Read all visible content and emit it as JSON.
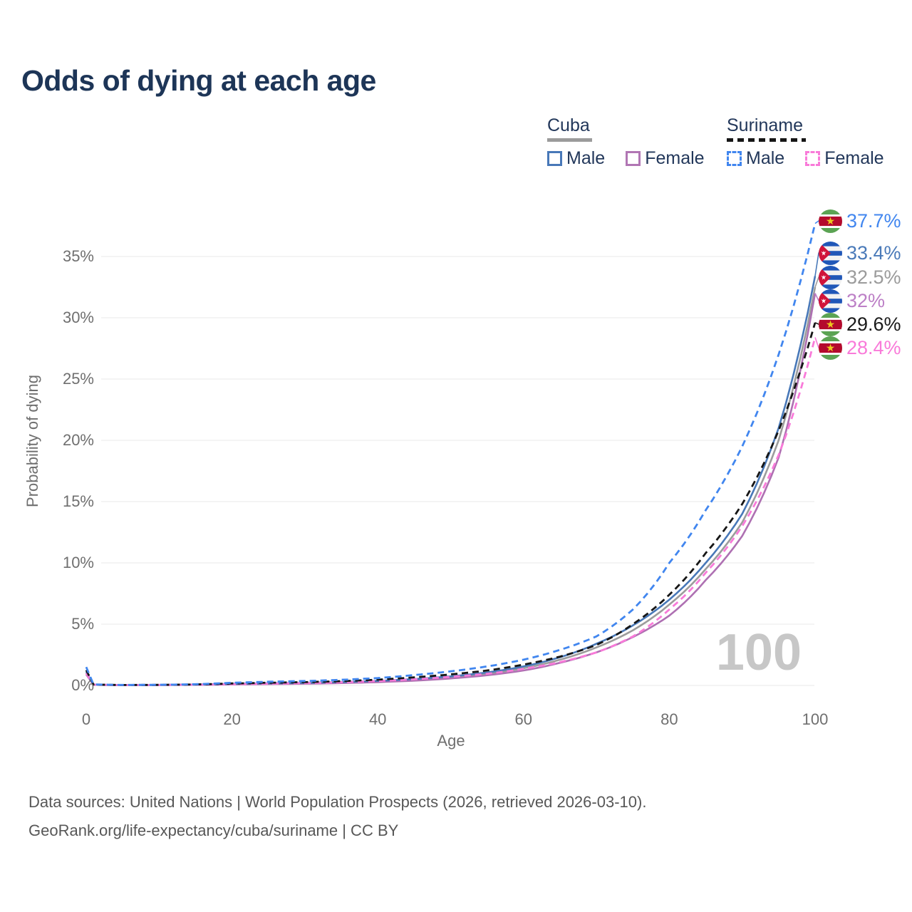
{
  "title": "Odds of dying at each age",
  "legend": {
    "groups": [
      {
        "country": "Cuba",
        "line_style": "solid",
        "underline_color": "#9b9b9b",
        "items": [
          {
            "label": "Male",
            "color": "#4878b8"
          },
          {
            "label": "Female",
            "color": "#b176b4"
          }
        ]
      },
      {
        "country": "Suriname",
        "line_style": "dashed",
        "underline_color": "#161616",
        "items": [
          {
            "label": "Male",
            "color": "#4186ef"
          },
          {
            "label": "Female",
            "color": "#f97ad9"
          }
        ]
      }
    ]
  },
  "chart_data": {
    "type": "line",
    "title": "Odds of dying at each age",
    "xlabel": "Age",
    "ylabel": "Probability of dying",
    "x_ticks": [
      0,
      20,
      40,
      60,
      80,
      100
    ],
    "y_tick_labels": [
      "0%",
      "5%",
      "10%",
      "15%",
      "20%",
      "25%",
      "30%",
      "35%"
    ],
    "xlim": [
      0,
      100
    ],
    "ylim_pct": [
      0,
      38
    ],
    "grid": "horizontal-only",
    "age_marker": "100",
    "ages": [
      0,
      1,
      5,
      10,
      15,
      20,
      25,
      30,
      35,
      40,
      45,
      50,
      55,
      60,
      65,
      70,
      75,
      80,
      85,
      90,
      95,
      100
    ],
    "series": [
      {
        "name": "Cuba (both sexes)",
        "country": "Cuba",
        "sex": "both",
        "color": "#9c9c9c",
        "dash": false,
        "end_label": "32.5%",
        "values_pct": [
          1.0,
          0.055,
          0.028,
          0.037,
          0.06,
          0.11,
          0.15,
          0.18,
          0.24,
          0.33,
          0.46,
          0.66,
          0.95,
          1.4,
          2.1,
          3.1,
          4.5,
          6.6,
          9.5,
          13.3,
          20.0,
          32.5
        ]
      },
      {
        "name": "Cuba Female",
        "country": "Cuba",
        "sex": "Female",
        "color": "#ae70b2",
        "dash": false,
        "end_label": "32%",
        "values_pct": [
          0.9,
          0.05,
          0.025,
          0.033,
          0.05,
          0.08,
          0.11,
          0.14,
          0.19,
          0.27,
          0.39,
          0.57,
          0.83,
          1.22,
          1.85,
          2.7,
          3.95,
          5.7,
          8.6,
          12.2,
          18.6,
          32.0
        ]
      },
      {
        "name": "Cuba Male",
        "country": "Cuba",
        "sex": "Male",
        "color": "#4878b8",
        "dash": false,
        "end_label": "33.4%",
        "values_pct": [
          1.1,
          0.06,
          0.03,
          0.04,
          0.07,
          0.13,
          0.17,
          0.21,
          0.28,
          0.37,
          0.52,
          0.74,
          1.06,
          1.55,
          2.3,
          3.4,
          4.9,
          7.0,
          10.0,
          14.0,
          21.0,
          33.4
        ]
      },
      {
        "name": "Suriname Female",
        "country": "Suriname",
        "sex": "Female",
        "color": "#f97ad9",
        "dash": true,
        "end_label": "28.4%",
        "values_pct": [
          1.0,
          0.06,
          0.03,
          0.04,
          0.06,
          0.1,
          0.14,
          0.19,
          0.26,
          0.36,
          0.5,
          0.7,
          0.95,
          1.35,
          1.9,
          2.7,
          4.0,
          6.2,
          9.2,
          13.0,
          18.8,
          28.4
        ]
      },
      {
        "name": "Suriname (both sexes)",
        "country": "Suriname",
        "sex": "both",
        "color": "#161616",
        "dash": true,
        "end_label": "29.6%",
        "values_pct": [
          1.25,
          0.07,
          0.035,
          0.045,
          0.08,
          0.16,
          0.22,
          0.27,
          0.35,
          0.47,
          0.66,
          0.9,
          1.22,
          1.7,
          2.35,
          3.3,
          5.0,
          7.4,
          10.8,
          14.8,
          20.8,
          29.6
        ]
      },
      {
        "name": "Suriname Male",
        "country": "Suriname",
        "sex": "Male",
        "color": "#4186ef",
        "dash": true,
        "end_label": "37.7%",
        "values_pct": [
          1.5,
          0.08,
          0.04,
          0.05,
          0.1,
          0.22,
          0.3,
          0.36,
          0.46,
          0.6,
          0.85,
          1.15,
          1.55,
          2.1,
          2.9,
          4.0,
          6.2,
          10.0,
          14.3,
          19.5,
          27.0,
          37.7
        ]
      }
    ]
  },
  "end_labels": [
    {
      "flag": "suriname",
      "series": "Suriname Male",
      "value": "37.7%",
      "color": "#4186ef"
    },
    {
      "flag": "cuba",
      "series": "Cuba Male",
      "value": "33.4%",
      "color": "#4a7ab9"
    },
    {
      "flag": "cuba",
      "series": "Cuba (both sexes)",
      "value": "32.5%",
      "color": "#9b9b9b"
    },
    {
      "flag": "cuba",
      "series": "Cuba Female",
      "value": "32%",
      "color": "#bc7fc6"
    },
    {
      "flag": "suriname",
      "series": "Suriname (both sexes)",
      "value": "29.6%",
      "color": "#1a1a1a"
    },
    {
      "flag": "suriname",
      "series": "Suriname Female",
      "value": "28.4%",
      "color": "#f97ad9"
    }
  ],
  "footer": {
    "line1": "Data sources: United Nations | World Population Prospects (2026, retrieved 2026-03-10).",
    "line2": "GeoRank.org/life-expectancy/cuba/suriname | CC BY"
  }
}
